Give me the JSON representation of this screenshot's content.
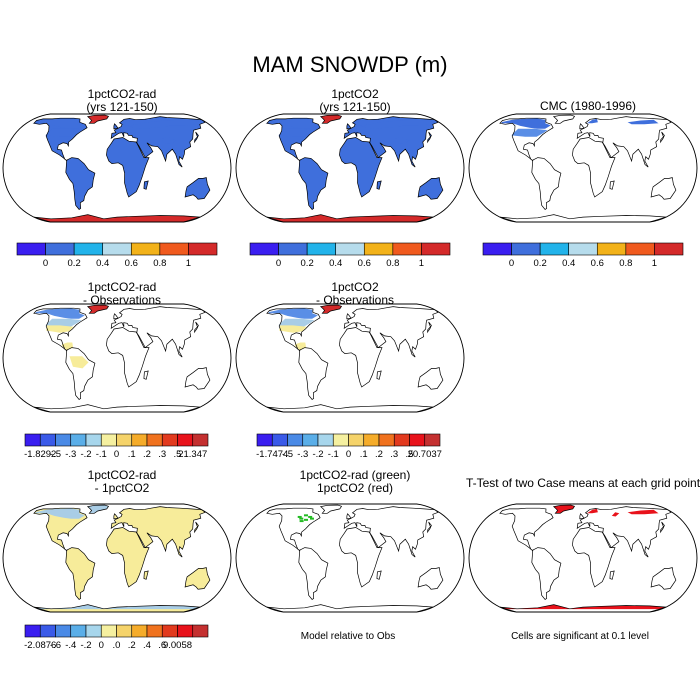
{
  "title": "MAM SNOWDP (m)",
  "colors": {
    "continent_stroke": "#000000",
    "map_fill": "#ffffff",
    "deep_blue": "#3f6fdc",
    "snow_red": "#d42a2a",
    "sig_red": "#e8121b",
    "pale_yellow": "#f7ec9a",
    "light_blue": "#a9cde6",
    "mid_blue": "#5a8ee6",
    "green": "#22bb22"
  },
  "panels": {
    "p1": {
      "title": "1pctCO2-rad",
      "subtitle": "(yrs 121-150)"
    },
    "p2": {
      "title": "1pctCO2",
      "subtitle": "(yrs 121-150)"
    },
    "p3": {
      "title": "CMC (1980-1996)",
      "subtitle": ""
    },
    "p4": {
      "title": "1pctCO2-rad",
      "subtitle": "- Observations"
    },
    "p5": {
      "title": "1pctCO2",
      "subtitle": "- Observations"
    },
    "p7": {
      "title": "1pctCO2-rad",
      "subtitle": "- 1pctCO2"
    },
    "p8": {
      "title": "1pctCO2-rad (green)",
      "subtitle": "1pctCO2 (red)"
    },
    "p9": {
      "title": "T-Test of two Case means at each grid point",
      "subtitle": ""
    }
  },
  "notes": {
    "p8": "Model relative to Obs",
    "p9": "Cells are significant at 0.1 level"
  },
  "chart_data": [
    {
      "type": "colorbar",
      "panel": "p1",
      "colors": [
        "#3a1ef0",
        "#3f6fdc",
        "#22b3ea",
        "#b6dcec",
        "#f2b21a",
        "#f05a1e",
        "#d42a2a"
      ],
      "labels": [
        "0",
        "0.2",
        "0.4",
        "0.6",
        "0.8",
        "1"
      ]
    },
    {
      "type": "colorbar",
      "panel": "p2",
      "colors": [
        "#3a1ef0",
        "#3f6fdc",
        "#22b3ea",
        "#b6dcec",
        "#f2b21a",
        "#f05a1e",
        "#d42a2a"
      ],
      "labels": [
        "0",
        "0.2",
        "0.4",
        "0.6",
        "0.8",
        "1"
      ]
    },
    {
      "type": "colorbar",
      "panel": "p3",
      "colors": [
        "#3a1ef0",
        "#3f6fdc",
        "#22b3ea",
        "#b6dcec",
        "#f2b21a",
        "#f05a1e",
        "#d42a2a"
      ],
      "labels": [
        "0",
        "0.2",
        "0.4",
        "0.6",
        "0.8",
        "1"
      ]
    },
    {
      "type": "colorbar",
      "panel": "p4",
      "colors": [
        "#3a1ef0",
        "#3a5ae8",
        "#4a8ae6",
        "#5aaee8",
        "#a7d6ec",
        "#f5f0a0",
        "#f5d36a",
        "#f5ac2a",
        "#f0721e",
        "#e23a1e",
        "#e8121b",
        "#c43030"
      ],
      "labels": [
        "-1.8292",
        "-.5",
        "-.3",
        "-.2",
        "-.1",
        "0",
        ".1",
        ".2",
        ".3",
        ".5",
        "21.347"
      ]
    },
    {
      "type": "colorbar",
      "panel": "p5",
      "colors": [
        "#3a1ef0",
        "#3a5ae8",
        "#4a8ae6",
        "#5aaee8",
        "#a7d6ec",
        "#f5f0a0",
        "#f5d36a",
        "#f5ac2a",
        "#f0721e",
        "#e23a1e",
        "#e8121b",
        "#c43030"
      ],
      "labels": [
        "-1.7474",
        "-.5",
        "-.3",
        "-.2",
        "-.1",
        "0",
        ".1",
        ".2",
        ".3",
        ".5",
        "20.7037"
      ]
    },
    {
      "type": "colorbar",
      "panel": "p7",
      "colors": [
        "#3a1ef0",
        "#3a5ae8",
        "#4a8ae6",
        "#5aaee8",
        "#a7d6ec",
        "#f5f0a0",
        "#f5d36a",
        "#f5ac2a",
        "#f0721e",
        "#e23a1e",
        "#e8121b",
        "#c43030"
      ],
      "labels": [
        "-2.0876",
        "-.6",
        "-.4",
        "-.2",
        "0",
        ".0",
        ".2",
        ".4",
        ".6",
        "9.0058"
      ]
    }
  ]
}
